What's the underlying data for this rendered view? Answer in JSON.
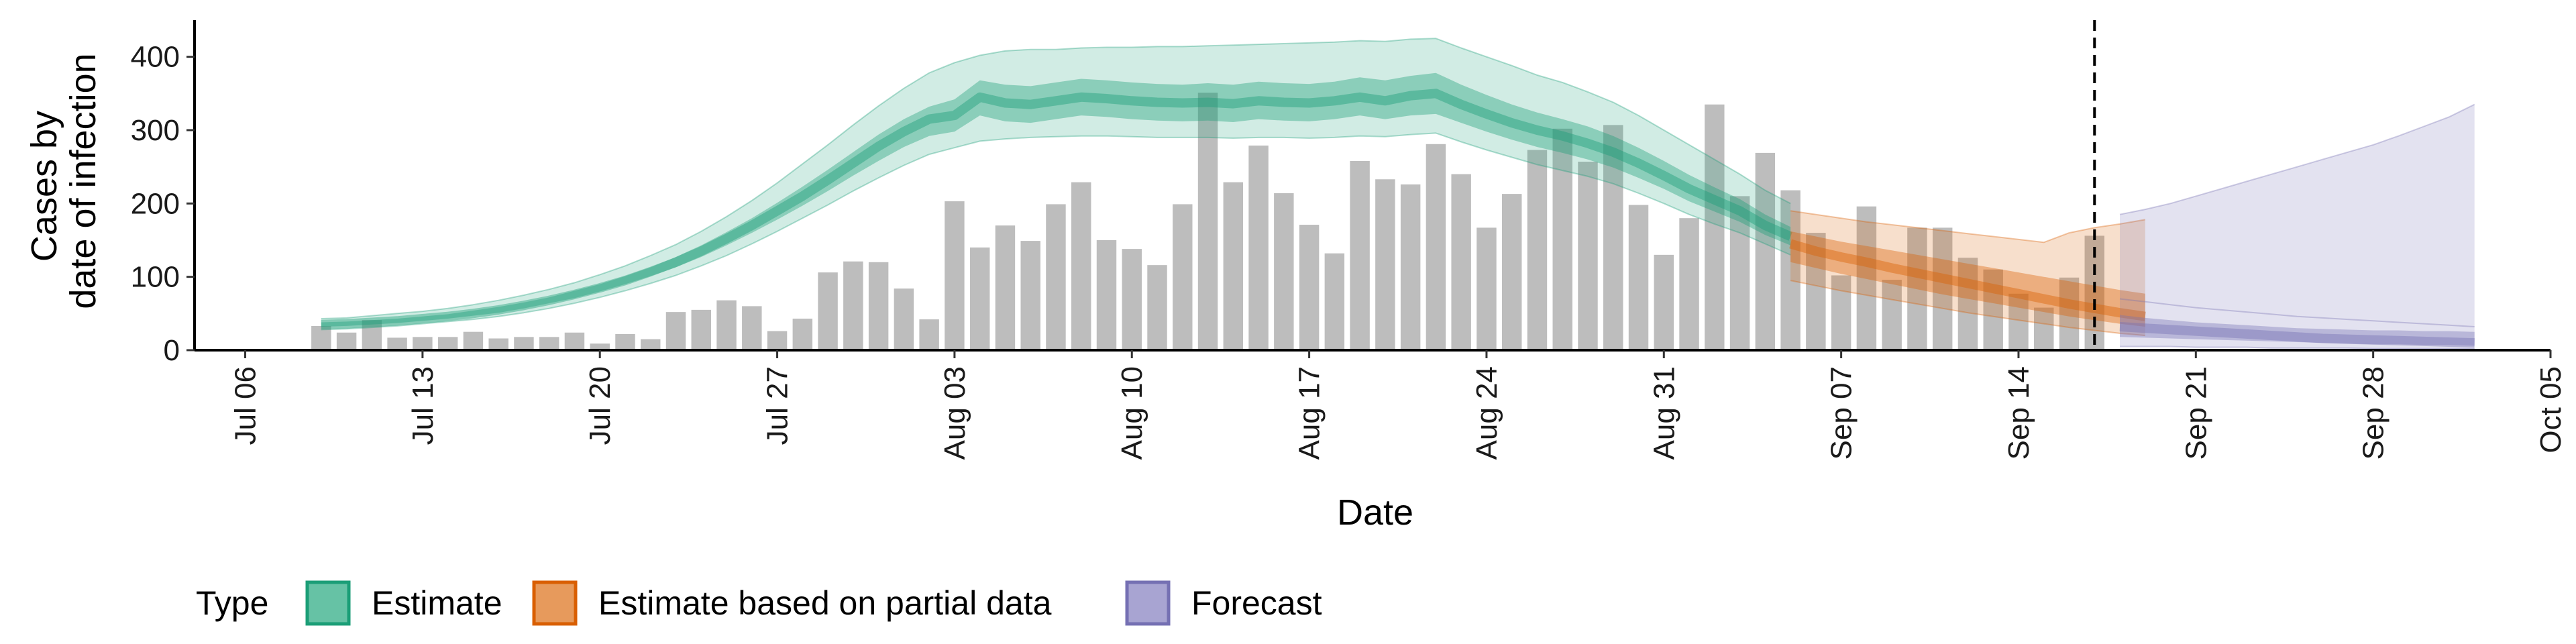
{
  "chart_data": {
    "type": "bar",
    "xlabel": "Date",
    "ylabel": [
      "Cases by",
      "date of infection"
    ],
    "ylim": [
      0,
      450
    ],
    "x_range": [
      "2020-07-04",
      "2020-10-05"
    ],
    "y_ticks": [
      0,
      100,
      200,
      300,
      400
    ],
    "x_ticks": [
      {
        "date": "2020-07-06",
        "label": "Jul 06"
      },
      {
        "date": "2020-07-13",
        "label": "Jul 13"
      },
      {
        "date": "2020-07-20",
        "label": "Jul 20"
      },
      {
        "date": "2020-07-27",
        "label": "Jul 27"
      },
      {
        "date": "2020-08-03",
        "label": "Aug 03"
      },
      {
        "date": "2020-08-10",
        "label": "Aug 10"
      },
      {
        "date": "2020-08-17",
        "label": "Aug 17"
      },
      {
        "date": "2020-08-24",
        "label": "Aug 24"
      },
      {
        "date": "2020-08-31",
        "label": "Aug 31"
      },
      {
        "date": "2020-09-07",
        "label": "Sep 07"
      },
      {
        "date": "2020-09-14",
        "label": "Sep 14"
      },
      {
        "date": "2020-09-21",
        "label": "Sep 21"
      },
      {
        "date": "2020-09-28",
        "label": "Sep 28"
      },
      {
        "date": "2020-10-05",
        "label": "Oct 05"
      }
    ],
    "grid": false,
    "legend": {
      "title": "Type",
      "position": "bottom-left",
      "entries": [
        {
          "label": "Estimate",
          "fill": "#66c2a5",
          "stroke": "#1b9e77"
        },
        {
          "label": "Estimate based on partial data",
          "fill": "#e79a5c",
          "stroke": "#d95f02"
        },
        {
          "label": "Forecast",
          "fill": "#a8a4d2",
          "stroke": "#7570b3"
        }
      ]
    },
    "colors": {
      "bars": "#bdbdbd",
      "estimate": "#1b9e77",
      "partial": "#d95f02",
      "forecast": "#7570b3"
    },
    "vline_date": "2020-09-17",
    "reported_cases": {
      "start_date": "2020-07-09",
      "values": [
        33,
        24,
        41,
        17,
        18,
        18,
        25,
        16,
        18,
        18,
        24,
        9,
        22,
        15,
        52,
        55,
        68,
        60,
        26,
        43,
        106,
        121,
        120,
        84,
        42,
        203,
        140,
        170,
        149,
        199,
        229,
        150,
        138,
        116,
        199,
        351,
        229,
        279,
        214,
        171,
        132,
        258,
        233,
        226,
        281,
        240,
        167,
        213,
        273,
        302,
        257,
        307,
        198,
        130,
        180,
        335,
        210,
        269,
        218,
        160,
        102,
        196,
        96,
        167,
        167,
        126,
        110,
        77,
        58,
        99,
        156
      ]
    },
    "estimate": {
      "start_date": "2020-07-09",
      "median": [
        35,
        36,
        38,
        40,
        43,
        46,
        50,
        55,
        61,
        68,
        76,
        85,
        95,
        107,
        120,
        135,
        152,
        170,
        190,
        210,
        232,
        255,
        278,
        298,
        315,
        320,
        345,
        337,
        335,
        340,
        345,
        343,
        340,
        338,
        337,
        338,
        336,
        340,
        338,
        337,
        340,
        345,
        340,
        347,
        350,
        335,
        322,
        310,
        300,
        292,
        282,
        270,
        255,
        238,
        220,
        205,
        190,
        170,
        155
      ],
      "lower50": [
        32,
        33,
        35,
        37,
        40,
        43,
        47,
        51,
        57,
        64,
        71,
        80,
        90,
        101,
        113,
        127,
        143,
        160,
        178,
        197,
        217,
        238,
        258,
        277,
        292,
        298,
        320,
        312,
        310,
        315,
        320,
        318,
        315,
        313,
        312,
        313,
        311,
        315,
        313,
        312,
        315,
        320,
        315,
        320,
        322,
        310,
        298,
        287,
        277,
        269,
        260,
        249,
        235,
        220,
        203,
        189,
        175,
        157,
        143
      ],
      "upper50": [
        38,
        39,
        41,
        43,
        46,
        49,
        54,
        59,
        65,
        72,
        81,
        90,
        101,
        113,
        127,
        143,
        161,
        180,
        201,
        223,
        246,
        270,
        294,
        315,
        332,
        342,
        368,
        362,
        360,
        365,
        370,
        368,
        365,
        363,
        362,
        364,
        362,
        366,
        364,
        363,
        366,
        372,
        368,
        374,
        378,
        362,
        348,
        335,
        324,
        315,
        305,
        292,
        276,
        258,
        239,
        222,
        206,
        185,
        168
      ],
      "lower90": [
        28,
        29,
        31,
        33,
        36,
        39,
        42,
        46,
        51,
        57,
        64,
        72,
        81,
        91,
        102,
        115,
        129,
        145,
        162,
        180,
        198,
        217,
        235,
        252,
        267,
        276,
        285,
        288,
        290,
        291,
        292,
        292,
        291,
        290,
        290,
        290,
        289,
        290,
        290,
        289,
        290,
        292,
        291,
        294,
        296,
        284,
        273,
        263,
        253,
        245,
        237,
        227,
        214,
        200,
        185,
        172,
        160,
        145,
        130
      ],
      "upper90": [
        43,
        44,
        47,
        50,
        53,
        57,
        62,
        68,
        75,
        83,
        92,
        103,
        115,
        129,
        144,
        162,
        182,
        204,
        228,
        254,
        280,
        307,
        333,
        357,
        378,
        392,
        402,
        408,
        410,
        410,
        412,
        413,
        413,
        414,
        414,
        415,
        416,
        417,
        418,
        419,
        420,
        422,
        421,
        424,
        425,
        412,
        400,
        388,
        375,
        365,
        352,
        338,
        320,
        300,
        280,
        260,
        240,
        218,
        200
      ]
    },
    "partial": {
      "start_date": "2020-09-05",
      "median": [
        145,
        135,
        127,
        120,
        112,
        105,
        98,
        91,
        84,
        77,
        70,
        63,
        57,
        51,
        46
      ],
      "lower50": [
        120,
        112,
        104,
        97,
        90,
        83,
        76,
        70,
        64,
        58,
        52,
        46,
        41,
        36,
        32
      ],
      "upper50": [
        162,
        155,
        148,
        142,
        136,
        130,
        124,
        118,
        112,
        106,
        100,
        94,
        88,
        82,
        77
      ],
      "lower90": [
        95,
        88,
        81,
        75,
        69,
        63,
        57,
        51,
        46,
        41,
        36,
        31,
        27,
        23,
        20
      ],
      "upper90": [
        190,
        185,
        180,
        175,
        171,
        167,
        163,
        159,
        155,
        151,
        147,
        160,
        167,
        172,
        178
      ]
    },
    "forecast": {
      "start_date": "2020-09-18",
      "median": [
        32,
        30,
        28,
        26,
        24,
        22,
        20,
        18,
        16,
        15,
        14,
        13,
        12,
        11,
        10
      ],
      "lower50": [
        18,
        17,
        16,
        15,
        14,
        13,
        12,
        11,
        10,
        9,
        8,
        8,
        7,
        7,
        6
      ],
      "upper50": [
        48,
        44,
        41,
        38,
        36,
        34,
        32,
        30,
        29,
        28,
        27,
        27,
        26,
        26,
        25
      ],
      "lower90": [
        5,
        5,
        5,
        4,
        4,
        4,
        3,
        3,
        3,
        3,
        2,
        2,
        2,
        2,
        2
      ],
      "upper90": [
        185,
        192,
        200,
        210,
        220,
        230,
        240,
        250,
        260,
        270,
        280,
        292,
        305,
        318,
        335
      ],
      "upper90_lower_line": [
        70,
        66,
        62,
        58,
        55,
        52,
        49,
        46,
        44,
        42,
        40,
        38,
        36,
        34,
        32
      ]
    }
  }
}
